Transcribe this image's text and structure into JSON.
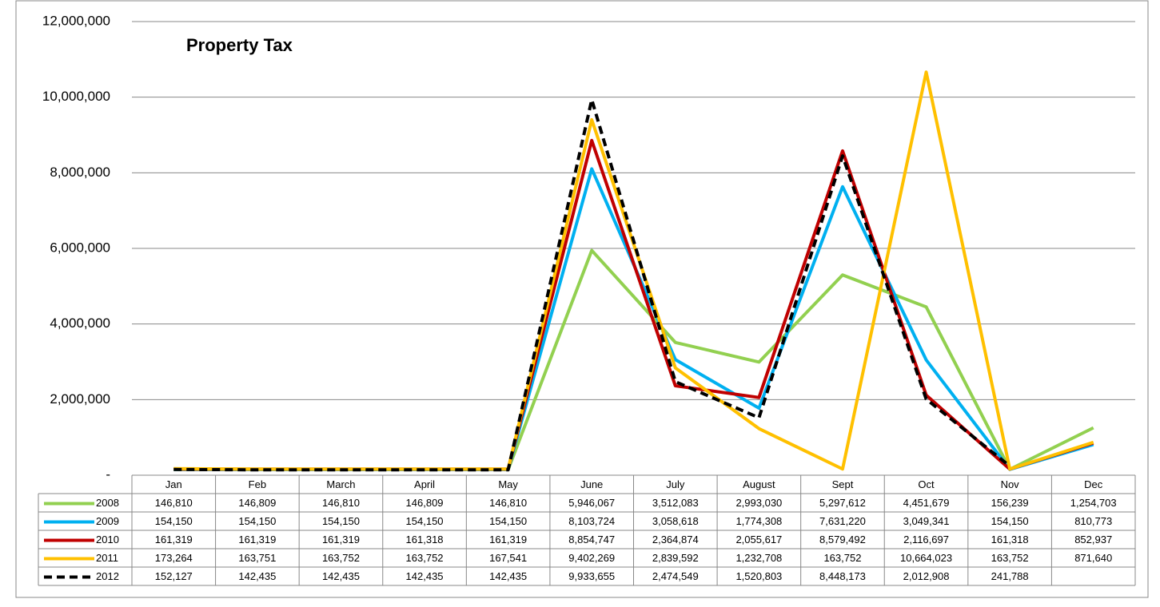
{
  "chart_data": {
    "type": "line",
    "title": "Property Tax",
    "categories": [
      "Jan",
      "Feb",
      "March",
      "April",
      "May",
      "June",
      "July",
      "August",
      "Sept",
      "Oct",
      "Nov",
      "Dec"
    ],
    "series": [
      {
        "name": "2008",
        "color": "#92d050",
        "dash": false,
        "values": [
          146810,
          146809,
          146810,
          146809,
          146810,
          5946067,
          3512083,
          2993030,
          5297612,
          4451679,
          156239,
          1254703
        ],
        "value_labels": [
          "146,810",
          "146,809",
          "146,810",
          "146,809",
          "146,810",
          "5,946,067",
          "3,512,083",
          "2,993,030",
          "5,297,612",
          "4,451,679",
          "156,239",
          "1,254,703"
        ]
      },
      {
        "name": "2009",
        "color": "#00b0f0",
        "dash": false,
        "values": [
          154150,
          154150,
          154150,
          154150,
          154150,
          8103724,
          3058618,
          1774308,
          7631220,
          3049341,
          154150,
          810773
        ],
        "value_labels": [
          "154,150",
          "154,150",
          "154,150",
          "154,150",
          "154,150",
          "8,103,724",
          "3,058,618",
          "1,774,308",
          "7,631,220",
          "3,049,341",
          "154,150",
          "810,773"
        ]
      },
      {
        "name": "2010",
        "color": "#c00000",
        "dash": false,
        "values": [
          161319,
          161319,
          161319,
          161318,
          161319,
          8854747,
          2364874,
          2055617,
          8579492,
          2116697,
          161318,
          852937
        ],
        "value_labels": [
          "161,319",
          "161,319",
          "161,319",
          "161,318",
          "161,319",
          "8,854,747",
          "2,364,874",
          "2,055,617",
          "8,579,492",
          "2,116,697",
          "161,318",
          "852,937"
        ]
      },
      {
        "name": "2011",
        "color": "#ffc000",
        "dash": false,
        "values": [
          173264,
          163751,
          163752,
          163752,
          167541,
          9402269,
          2839592,
          1232708,
          163752,
          10664023,
          163752,
          871640
        ],
        "value_labels": [
          "173,264",
          "163,751",
          "163,752",
          "163,752",
          "167,541",
          "9,402,269",
          "2,839,592",
          "1,232,708",
          "163,752",
          "10,664,023",
          "163,752",
          "871,640"
        ]
      },
      {
        "name": "2012",
        "color": "#000000",
        "dash": true,
        "values": [
          152127,
          142435,
          142435,
          142435,
          142435,
          9933655,
          2474549,
          1520803,
          8448173,
          2012908,
          241788,
          null
        ],
        "value_labels": [
          "152,127",
          "142,435",
          "142,435",
          "142,435",
          "142,435",
          "9,933,655",
          "2,474,549",
          "1,520,803",
          "8,448,173",
          "2,012,908",
          "241,788",
          null
        ]
      }
    ],
    "ylim": [
      0,
      12000000
    ],
    "yticks": [
      {
        "value": 0,
        "label": "-"
      },
      {
        "value": 2000000,
        "label": "2,000,000"
      },
      {
        "value": 4000000,
        "label": "4,000,000"
      },
      {
        "value": 6000000,
        "label": "6,000,000"
      },
      {
        "value": 8000000,
        "label": "8,000,000"
      },
      {
        "value": 10000000,
        "label": "10,000,000"
      },
      {
        "value": 12000000,
        "label": "12,000,000"
      }
    ],
    "grid": true
  }
}
